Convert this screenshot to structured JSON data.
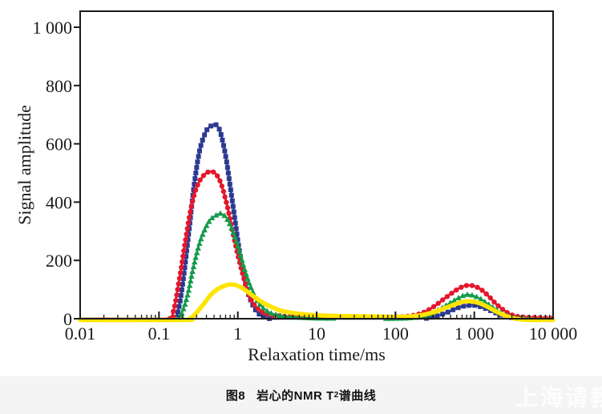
{
  "figure": {
    "background": "#ffffff",
    "caption_band_color": "#f4f4f4",
    "caption": {
      "fig_label": "图8",
      "title_pre": "岩心的NMR T",
      "title_sub": "2",
      "title_post": "谱曲线"
    },
    "watermark": "上海请教"
  },
  "chart_data": {
    "type": "line",
    "title": "",
    "xlabel": "Relaxation time/ms",
    "ylabel": "Signal amplitude",
    "x_scale": "log",
    "xlim": [
      0.01,
      10000
    ],
    "ylim": [
      0,
      1000
    ],
    "grid": false,
    "legend": "none",
    "axis_color": "#1a1a1a",
    "x_tick_values": [
      0.01,
      0.1,
      1,
      10,
      100,
      1000,
      10000
    ],
    "x_tick_labels": [
      "0.01",
      "0.1",
      "1",
      "10",
      "100",
      "1 000",
      "10 000"
    ],
    "y_tick_values": [
      0,
      200,
      400,
      600,
      800,
      1000
    ],
    "y_tick_labels": [
      "0",
      "200",
      "400",
      "600",
      "800",
      "1 000"
    ],
    "series": [
      {
        "name": "core-sample-blue",
        "color": "#2b3990",
        "marker": "square",
        "line_width": 2.4,
        "marker_step": 7,
        "points": [
          [
            0.01,
            0
          ],
          [
            0.14,
            0
          ],
          [
            0.17,
            15
          ],
          [
            0.2,
            120
          ],
          [
            0.24,
            300
          ],
          [
            0.28,
            460
          ],
          [
            0.33,
            580
          ],
          [
            0.4,
            645
          ],
          [
            0.47,
            663
          ],
          [
            0.53,
            665
          ],
          [
            0.6,
            640
          ],
          [
            0.7,
            560
          ],
          [
            0.8,
            455
          ],
          [
            0.92,
            340
          ],
          [
            1.05,
            230
          ],
          [
            1.25,
            120
          ],
          [
            1.5,
            55
          ],
          [
            1.8,
            20
          ],
          [
            2.2,
            5
          ],
          [
            2.6,
            0
          ],
          [
            5,
            0
          ],
          [
            50,
            0
          ],
          [
            200,
            0
          ],
          [
            300,
            6
          ],
          [
            420,
            18
          ],
          [
            550,
            32
          ],
          [
            700,
            42
          ],
          [
            900,
            46
          ],
          [
            1100,
            44
          ],
          [
            1400,
            35
          ],
          [
            1800,
            22
          ],
          [
            2300,
            10
          ],
          [
            3000,
            3
          ],
          [
            4000,
            0
          ],
          [
            10000,
            0
          ]
        ]
      },
      {
        "name": "core-sample-red",
        "color": "#e4172c",
        "marker": "circle",
        "line_width": 2.8,
        "marker_step": 7,
        "points": [
          [
            0.01,
            0
          ],
          [
            0.12,
            0
          ],
          [
            0.15,
            20
          ],
          [
            0.18,
            130
          ],
          [
            0.22,
            280
          ],
          [
            0.26,
            390
          ],
          [
            0.31,
            460
          ],
          [
            0.38,
            495
          ],
          [
            0.45,
            505
          ],
          [
            0.52,
            498
          ],
          [
            0.6,
            470
          ],
          [
            0.7,
            410
          ],
          [
            0.8,
            340
          ],
          [
            0.92,
            262
          ],
          [
            1.05,
            195
          ],
          [
            1.25,
            120
          ],
          [
            1.5,
            62
          ],
          [
            1.9,
            28
          ],
          [
            2.5,
            14
          ],
          [
            3.5,
            9
          ],
          [
            5,
            7
          ],
          [
            8,
            7
          ],
          [
            15,
            8
          ],
          [
            30,
            7
          ],
          [
            60,
            6
          ],
          [
            100,
            6
          ],
          [
            150,
            9
          ],
          [
            220,
            20
          ],
          [
            300,
            40
          ],
          [
            400,
            65
          ],
          [
            520,
            88
          ],
          [
            650,
            105
          ],
          [
            800,
            114
          ],
          [
            1000,
            112
          ],
          [
            1250,
            98
          ],
          [
            1550,
            75
          ],
          [
            1900,
            50
          ],
          [
            2400,
            28
          ],
          [
            3000,
            13
          ],
          [
            4000,
            6
          ],
          [
            6000,
            4
          ],
          [
            8000,
            3
          ],
          [
            10000,
            1
          ]
        ]
      },
      {
        "name": "core-sample-green",
        "color": "#149b49",
        "marker": "triangle",
        "line_width": 2.2,
        "marker_step": 6,
        "points": [
          [
            0.01,
            0
          ],
          [
            0.16,
            0
          ],
          [
            0.19,
            12
          ],
          [
            0.23,
            80
          ],
          [
            0.27,
            170
          ],
          [
            0.32,
            250
          ],
          [
            0.38,
            305
          ],
          [
            0.45,
            340
          ],
          [
            0.55,
            357
          ],
          [
            0.62,
            360
          ],
          [
            0.72,
            345
          ],
          [
            0.85,
            305
          ],
          [
            1.0,
            250
          ],
          [
            1.2,
            175
          ],
          [
            1.45,
            110
          ],
          [
            1.8,
            58
          ],
          [
            2.3,
            28
          ],
          [
            3,
            14
          ],
          [
            4.5,
            6
          ],
          [
            7,
            3
          ],
          [
            12,
            1
          ],
          [
            50,
            0
          ],
          [
            150,
            2
          ],
          [
            250,
            12
          ],
          [
            350,
            30
          ],
          [
            480,
            52
          ],
          [
            620,
            70
          ],
          [
            780,
            82
          ],
          [
            950,
            80
          ],
          [
            1200,
            68
          ],
          [
            1500,
            50
          ],
          [
            1900,
            31
          ],
          [
            2400,
            15
          ],
          [
            3000,
            6
          ],
          [
            4000,
            1
          ],
          [
            10000,
            0
          ]
        ]
      },
      {
        "name": "core-sample-yellow",
        "color": "#ffe400",
        "marker": "none",
        "line_width": 5.5,
        "marker_step": 0,
        "points": [
          [
            0.01,
            0
          ],
          [
            0.2,
            0
          ],
          [
            0.25,
            6
          ],
          [
            0.3,
            25
          ],
          [
            0.37,
            55
          ],
          [
            0.45,
            85
          ],
          [
            0.55,
            105
          ],
          [
            0.68,
            117
          ],
          [
            0.82,
            122
          ],
          [
            1.0,
            117
          ],
          [
            1.2,
            105
          ],
          [
            1.5,
            86
          ],
          [
            2.0,
            62
          ],
          [
            2.7,
            44
          ],
          [
            3.6,
            31
          ],
          [
            5,
            24
          ],
          [
            7,
            19
          ],
          [
            10,
            16
          ],
          [
            15,
            14
          ],
          [
            25,
            13
          ],
          [
            45,
            12
          ],
          [
            80,
            11
          ],
          [
            130,
            11
          ],
          [
            200,
            15
          ],
          [
            300,
            26
          ],
          [
            420,
            40
          ],
          [
            560,
            53
          ],
          [
            720,
            62
          ],
          [
            900,
            64
          ],
          [
            1150,
            58
          ],
          [
            1450,
            46
          ],
          [
            1800,
            32
          ],
          [
            2300,
            18
          ],
          [
            2900,
            8
          ],
          [
            3800,
            2
          ],
          [
            5000,
            0
          ],
          [
            10000,
            0
          ]
        ]
      }
    ]
  }
}
